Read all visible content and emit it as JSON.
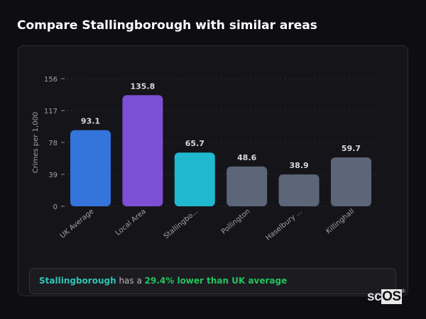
{
  "header": {
    "title": "Compare Stallingborough with similar areas"
  },
  "chart_data": {
    "type": "bar",
    "ylabel": "Crimes per 1,000",
    "ylim": [
      0,
      156
    ],
    "yticks": [
      0,
      39,
      78,
      117,
      156
    ],
    "grid": true,
    "categories": [
      "UK Average",
      "Local Area",
      "Stallingbo...",
      "Pollington",
      "Haselbury ...",
      "Killinghall"
    ],
    "values": [
      93.1,
      135.8,
      65.7,
      48.6,
      38.9,
      59.7
    ],
    "value_labels": [
      "93.1",
      "135.8",
      "65.7",
      "48.6",
      "38.9",
      "59.7"
    ],
    "colors": [
      "#3474db",
      "#7c4fd4",
      "#1fb8cf",
      "#5b6679",
      "#5b6679",
      "#5b6679"
    ]
  },
  "footer": {
    "area": "Stallingborough",
    "middle": " has a ",
    "comparison": "29.4% lower than UK average"
  },
  "logo": {
    "text_a": "sc",
    "text_b": "OS",
    "mark": "®"
  }
}
